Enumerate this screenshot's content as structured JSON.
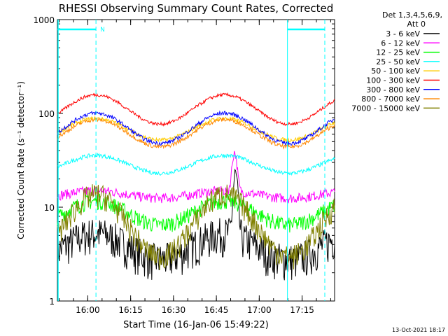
{
  "chart_data": {
    "type": "line",
    "title": "RHESSI Observing Summary Count Rates, Corrected",
    "xlabel": "Start Time (16-Jan-06 15:49:22)",
    "ylabel": "Corrected Count Rate (s⁻¹ detector⁻¹)",
    "yscale": "log",
    "ylim": [
      1,
      1000
    ],
    "y_ticks": [
      "1",
      "10",
      "100",
      "1000"
    ],
    "x_ticks": [
      {
        "label": "16:00",
        "min": 10.63
      },
      {
        "label": "16:15",
        "min": 25.63
      },
      {
        "label": "16:30",
        "min": 40.63
      },
      {
        "label": "16:45",
        "min": 55.63
      },
      {
        "label": "17:00",
        "min": 70.63
      },
      {
        "label": "17:15",
        "min": 85.63
      }
    ],
    "xlim_minutes": [
      0,
      97
    ],
    "legend_header": [
      "Det 1,3,4,5,6,9,",
      "Att 0"
    ],
    "legend_position": "right",
    "markers": {
      "night_start_min": 13.5,
      "night_end_min": 80.5,
      "saa_label": "N"
    },
    "series": [
      {
        "name": "3 - 6 keV",
        "color": "#000000",
        "base": 2.8,
        "amp": 1.9,
        "noise": 0.45,
        "floor": 1.0
      },
      {
        "name": "6 - 12 keV",
        "color": "#ff00ff",
        "base": 12.5,
        "amp": 1.2,
        "noise": 0.12,
        "flare": 2.6
      },
      {
        "name": "12 - 25 keV",
        "color": "#00ff00",
        "base": 6.5,
        "amp": 1.8,
        "noise": 0.2
      },
      {
        "name": "25 - 50 keV",
        "color": "#00ffff",
        "base": 23,
        "amp": 1.55,
        "noise": 0.05
      },
      {
        "name": "50 - 100 keV",
        "color": "#ffcc00",
        "base": 52,
        "amp": 1.7,
        "noise": 0.05
      },
      {
        "name": "100 - 300 keV",
        "color": "#ff0000",
        "base": 77,
        "amp": 2.05,
        "noise": 0.04
      },
      {
        "name": "300 - 800 keV",
        "color": "#0000ff",
        "base": 48,
        "amp": 2.1,
        "noise": 0.05
      },
      {
        "name": "800 - 7000 keV",
        "color": "#ff8800",
        "base": 44,
        "amp": 1.95,
        "noise": 0.05
      },
      {
        "name": "7000 - 15000 keV",
        "color": "#808000",
        "base": 3.0,
        "amp": 4.6,
        "noise": 0.3,
        "floor": 1.4
      }
    ]
  },
  "timestamp": "13-Oct-2021 18:17"
}
